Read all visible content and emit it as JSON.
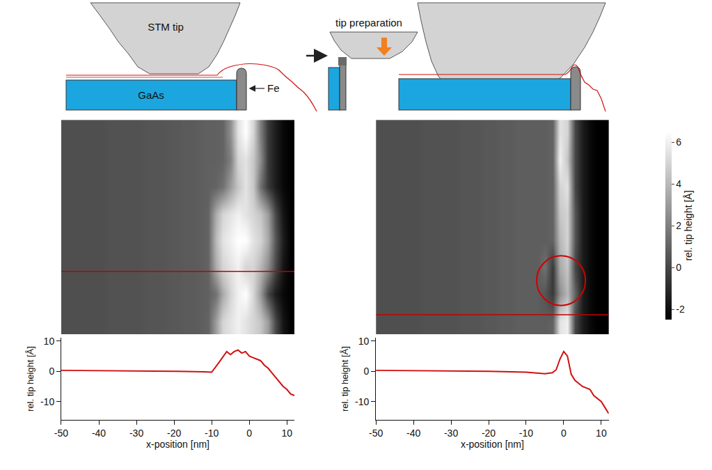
{
  "diagram": {
    "tip": "STM tip",
    "preparation": "tip preparation",
    "substrate": "GaAs",
    "film": "Fe"
  },
  "colorbar": {
    "title": "rel. tip height [Å]",
    "zlim": [
      -2.5,
      6.5
    ],
    "ticks": [
      -2,
      0,
      2,
      4,
      6
    ],
    "colorscale": [
      "#000000",
      "#ffffff"
    ]
  },
  "chart_data": [
    {
      "type": "heatmap",
      "xlim": [
        -50,
        12
      ],
      "ylim": [
        0,
        56
      ],
      "x": [
        -49,
        -47,
        -45,
        -43,
        -41,
        -39,
        -37,
        -35,
        -33,
        -31,
        -29,
        -27,
        -25,
        -23,
        -21,
        -19,
        -17,
        -15,
        -13,
        -11,
        -9,
        -7,
        -5,
        -3,
        -1,
        1,
        3,
        5,
        7,
        9,
        11
      ],
      "y": [
        3.5,
        10.5,
        17.5,
        24.5,
        31.5,
        38.5,
        45.5,
        52.5
      ],
      "z": [
        [
          0.3,
          0.3,
          0.3,
          0.3,
          0.3,
          0.3,
          0.4,
          0.4,
          0.4,
          0.4,
          0.4,
          0.5,
          0.5,
          0.5,
          0.6,
          0.6,
          0.7,
          0.7,
          0.8,
          0.9,
          0.9,
          1.0,
          2.5,
          5.5,
          6.5,
          5.0,
          2.0,
          -0.5,
          -1.5,
          -2.2,
          -2.5
        ],
        [
          0.3,
          0.3,
          0.3,
          0.3,
          0.3,
          0.3,
          0.4,
          0.4,
          0.4,
          0.4,
          0.4,
          0.5,
          0.5,
          0.5,
          0.6,
          0.6,
          0.7,
          0.7,
          0.8,
          0.9,
          0.9,
          1.0,
          2.0,
          5.0,
          5.5,
          4.5,
          2.5,
          -0.5,
          -1.5,
          -2.2,
          -2.5
        ],
        [
          0.3,
          0.3,
          0.3,
          0.3,
          0.3,
          0.3,
          0.4,
          0.4,
          0.4,
          0.4,
          0.4,
          0.5,
          0.5,
          0.5,
          0.6,
          0.6,
          0.7,
          0.7,
          0.8,
          0.9,
          1.0,
          1.5,
          3.0,
          4.5,
          5.5,
          4.5,
          1.5,
          -0.5,
          -1.5,
          -2.2,
          -2.5
        ],
        [
          0.3,
          0.3,
          0.3,
          0.3,
          0.3,
          0.3,
          0.4,
          0.4,
          0.4,
          0.4,
          0.4,
          0.5,
          0.5,
          0.5,
          0.6,
          0.6,
          0.7,
          0.7,
          0.8,
          1.0,
          3.5,
          5.0,
          5.5,
          6.0,
          5.5,
          5.0,
          4.5,
          3.0,
          0.0,
          -1.8,
          -2.5
        ],
        [
          0.3,
          0.3,
          0.3,
          0.3,
          0.3,
          0.3,
          0.4,
          0.4,
          0.4,
          0.4,
          0.4,
          0.5,
          0.5,
          0.5,
          0.6,
          0.6,
          0.7,
          0.7,
          0.8,
          1.0,
          4.0,
          5.5,
          6.0,
          6.5,
          6.5,
          5.5,
          5.0,
          3.5,
          0.5,
          -1.5,
          -2.5
        ],
        [
          0.3,
          0.3,
          0.3,
          0.3,
          0.3,
          0.3,
          0.4,
          0.4,
          0.4,
          0.4,
          0.4,
          0.5,
          0.5,
          0.5,
          0.6,
          0.6,
          0.7,
          0.7,
          0.8,
          1.0,
          3.5,
          5.0,
          5.5,
          6.0,
          5.0,
          5.0,
          4.0,
          2.5,
          0.0,
          -1.8,
          -2.5
        ],
        [
          0.3,
          0.3,
          0.3,
          0.3,
          0.3,
          0.3,
          0.4,
          0.4,
          0.4,
          0.4,
          0.4,
          0.5,
          0.5,
          0.5,
          0.6,
          0.6,
          0.7,
          0.7,
          0.8,
          0.9,
          1.5,
          3.5,
          5.0,
          6.0,
          6.5,
          5.0,
          3.0,
          0.0,
          -1.5,
          -2.2,
          -2.5
        ],
        [
          0.3,
          0.3,
          0.3,
          0.3,
          0.3,
          0.3,
          0.4,
          0.4,
          0.4,
          0.4,
          0.4,
          0.5,
          0.5,
          0.5,
          0.6,
          0.6,
          0.7,
          0.7,
          0.8,
          1.0,
          3.0,
          5.0,
          5.5,
          6.0,
          5.5,
          5.0,
          4.5,
          3.0,
          0.0,
          -1.8,
          -2.5
        ]
      ],
      "profile_y": 39.6,
      "profile_color": "#c00000"
    },
    {
      "type": "heatmap",
      "xlim": [
        -50,
        12
      ],
      "ylim": [
        0,
        56
      ],
      "x": [
        -49,
        -47,
        -45,
        -43,
        -41,
        -39,
        -37,
        -35,
        -33,
        -31,
        -29,
        -27,
        -25,
        -23,
        -21,
        -19,
        -17,
        -15,
        -13,
        -11,
        -9,
        -7,
        -5,
        -3,
        -1,
        1,
        3,
        5,
        7,
        9,
        11
      ],
      "y": [
        3.5,
        10.5,
        17.5,
        24.5,
        31.5,
        38.5,
        45.5,
        52.5
      ],
      "z": [
        [
          0.3,
          0.3,
          0.3,
          0.3,
          0.3,
          0.3,
          0.4,
          0.4,
          0.4,
          0.4,
          0.4,
          0.5,
          0.5,
          0.5,
          0.6,
          0.6,
          0.7,
          0.7,
          0.8,
          0.8,
          0.8,
          0.8,
          0.8,
          1.0,
          5.5,
          5.0,
          0.0,
          -1.5,
          -2.2,
          -2.5,
          -2.5
        ],
        [
          0.3,
          0.3,
          0.3,
          0.3,
          0.3,
          0.3,
          0.4,
          0.4,
          0.4,
          0.4,
          0.4,
          0.5,
          0.5,
          0.5,
          0.6,
          0.6,
          0.7,
          0.7,
          0.8,
          0.8,
          0.8,
          0.8,
          0.8,
          1.0,
          6.0,
          4.5,
          0.0,
          -1.5,
          -2.2,
          -2.5,
          -2.5
        ],
        [
          0.3,
          0.3,
          0.3,
          0.3,
          0.3,
          0.3,
          0.4,
          0.4,
          0.4,
          0.4,
          0.4,
          0.5,
          0.5,
          0.5,
          0.6,
          0.6,
          0.7,
          0.7,
          0.8,
          0.8,
          0.8,
          0.8,
          0.8,
          1.0,
          5.0,
          5.5,
          0.0,
          -1.5,
          -2.2,
          -2.5,
          -2.5
        ],
        [
          0.3,
          0.3,
          0.3,
          0.3,
          0.3,
          0.3,
          0.4,
          0.4,
          0.4,
          0.4,
          0.4,
          0.5,
          0.5,
          0.5,
          0.6,
          0.6,
          0.7,
          0.7,
          0.8,
          0.8,
          0.8,
          0.8,
          0.8,
          1.0,
          4.5,
          5.0,
          0.5,
          -1.5,
          -2.2,
          -2.5,
          -2.5
        ],
        [
          0.3,
          0.3,
          0.3,
          0.3,
          0.3,
          0.3,
          0.4,
          0.4,
          0.4,
          0.4,
          0.4,
          0.5,
          0.5,
          0.5,
          0.6,
          0.6,
          0.7,
          0.7,
          0.8,
          0.8,
          0.8,
          0.8,
          0.8,
          1.0,
          4.0,
          5.0,
          0.5,
          -1.5,
          -2.2,
          -2.5,
          -2.5
        ],
        [
          0.3,
          0.3,
          0.3,
          0.3,
          0.3,
          0.3,
          0.4,
          0.4,
          0.4,
          0.4,
          0.4,
          0.5,
          0.5,
          0.5,
          0.6,
          0.6,
          0.7,
          0.7,
          0.8,
          0.8,
          0.8,
          0.8,
          1.5,
          -0.5,
          3.5,
          4.5,
          0.0,
          -1.5,
          -2.2,
          -2.5,
          -2.5
        ],
        [
          0.3,
          0.3,
          0.3,
          0.3,
          0.3,
          0.3,
          0.4,
          0.4,
          0.4,
          0.4,
          0.4,
          0.5,
          0.5,
          0.5,
          0.6,
          0.6,
          0.7,
          0.7,
          0.8,
          0.8,
          0.8,
          0.8,
          0.5,
          -0.5,
          2.5,
          4.0,
          1.0,
          -1.5,
          -2.2,
          -2.5,
          -2.5
        ],
        [
          0.3,
          0.3,
          0.3,
          0.3,
          0.3,
          0.3,
          0.4,
          0.4,
          0.4,
          0.4,
          0.4,
          0.5,
          0.5,
          0.5,
          0.6,
          0.6,
          0.7,
          0.7,
          0.8,
          0.8,
          0.8,
          0.8,
          0.8,
          1.0,
          5.5,
          6.0,
          0.0,
          -1.5,
          -2.2,
          -2.5,
          -2.5
        ]
      ],
      "profile_y": 50.9,
      "profile_color": "#c00000",
      "circle": {
        "x": -0.7,
        "y": 42,
        "r": 6.5,
        "color": "#d00000"
      }
    },
    {
      "type": "line",
      "xlabel": "x-position [nm]",
      "ylabel": "rel. tip height [Å]",
      "color": "#d01010",
      "xlim": [
        -50,
        12
      ],
      "ylim": [
        -16,
        11
      ],
      "xticks": [
        -50,
        -40,
        -30,
        -20,
        -10,
        0,
        10
      ],
      "yticks": [
        -10,
        0,
        10
      ],
      "x": [
        -50,
        -40,
        -30,
        -20,
        -12,
        -10,
        -8,
        -6,
        -5,
        -4,
        -3,
        -2,
        -1,
        0,
        1,
        2,
        3,
        4,
        5,
        6,
        7,
        8,
        9,
        10,
        11,
        12
      ],
      "values": [
        0.3,
        0.2,
        0.2,
        0,
        -0.2,
        -0.3,
        3,
        6.5,
        5.5,
        6.5,
        7,
        6,
        6.5,
        5,
        4.5,
        4,
        3.5,
        2,
        1,
        -0.5,
        -2,
        -3.5,
        -5,
        -6,
        -7.5,
        -8
      ]
    },
    {
      "type": "line",
      "xlabel": "x-position [nm]",
      "ylabel": "rel. tip height [Å]",
      "color": "#d01010",
      "xlim": [
        -50,
        12
      ],
      "ylim": [
        -16,
        11
      ],
      "xticks": [
        -50,
        -40,
        -30,
        -20,
        -10,
        0,
        10
      ],
      "yticks": [
        -10,
        0,
        10
      ],
      "x": [
        -50,
        -40,
        -30,
        -20,
        -10,
        -5,
        -3,
        -2,
        -1,
        0,
        1,
        2,
        3,
        4,
        5,
        6,
        7,
        8,
        9,
        10,
        11,
        12
      ],
      "values": [
        0.3,
        0.2,
        0.1,
        0,
        -0.3,
        -0.8,
        -0.5,
        0.5,
        4,
        6.5,
        5,
        -1,
        -3,
        -4,
        -5,
        -5.5,
        -6,
        -8,
        -9,
        -10,
        -12,
        -14
      ]
    }
  ]
}
